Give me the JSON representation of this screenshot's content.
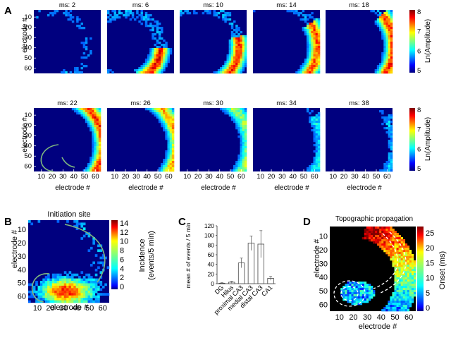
{
  "panels": {
    "A": {
      "letter": "A",
      "frames": [
        {
          "title": "ms: 2",
          "intensity": 0.35,
          "ang": [
            1.05,
            1.35
          ],
          "rad": 0.55
        },
        {
          "title": "ms: 6",
          "intensity": 0.85,
          "ang": [
            0.05,
            1.2
          ],
          "rad": 0.55
        },
        {
          "title": "ms: 10",
          "intensity": 0.8,
          "ang": [
            -0.25,
            1.25
          ],
          "rad": 0.64
        },
        {
          "title": "ms: 14",
          "intensity": 0.75,
          "ang": [
            -0.55,
            1.15
          ],
          "rad": 0.72
        },
        {
          "title": "ms: 18",
          "intensity": 0.8,
          "ang": [
            -0.7,
            1.1
          ],
          "rad": 0.78
        },
        {
          "title": "ms: 22",
          "intensity": 0.8,
          "ang": [
            -1.1,
            1.1
          ],
          "rad": 0.8
        },
        {
          "title": "ms: 26",
          "intensity": 0.65,
          "ang": [
            -1.1,
            1.1
          ],
          "rad": 0.8
        },
        {
          "title": "ms: 30",
          "intensity": 0.45,
          "ang": [
            -1.1,
            1.1
          ],
          "rad": 0.8
        },
        {
          "title": "ms: 34",
          "intensity": 0.25,
          "ang": [
            -0.6,
            1.1
          ],
          "rad": 0.8
        },
        {
          "title": "ms: 38",
          "intensity": 0.18,
          "ang": [
            -0.6,
            1.1
          ],
          "rad": 0.8
        }
      ],
      "ylabel": "electrode #",
      "xlabel": "electrode #",
      "yticks": [
        "10",
        "20",
        "30",
        "40",
        "50",
        "60"
      ],
      "xticks": [
        "10",
        "20",
        "30",
        "40",
        "50",
        "60"
      ],
      "colorbar": {
        "label": "Ln(Amplitude)",
        "ticks": [
          "8",
          "7",
          "6",
          "5"
        ]
      }
    },
    "B": {
      "letter": "B",
      "title": "Initiation site",
      "ylabel": "electrode #",
      "xlabel": "electrode #",
      "yticks": [
        "10",
        "20",
        "30",
        "40",
        "50",
        "60"
      ],
      "xticks": [
        "10",
        "20",
        "30",
        "40",
        "50",
        "60"
      ],
      "colorbar": {
        "label_line1": "Incidence",
        "label_line2": "(events/5 min)",
        "ticks": [
          "14",
          "12",
          "10",
          "8",
          "6",
          "4",
          "2",
          "0"
        ]
      }
    },
    "C": {
      "letter": "C",
      "chart_data": {
        "type": "bar",
        "categories": [
          "DG",
          "Hilus",
          "proximal CA3",
          "medial CA3",
          "distal CA3",
          "CA1"
        ],
        "values": [
          1,
          3,
          43,
          84,
          82,
          11
        ],
        "errors": [
          1,
          2,
          10,
          15,
          28,
          4
        ],
        "ylabel": "mean # of events / 5 min",
        "ylim": [
          0,
          120
        ],
        "yticks": [
          0,
          20,
          40,
          60,
          80,
          100,
          120
        ]
      }
    },
    "D": {
      "letter": "D",
      "title": "Topographic propagation",
      "ylabel": "electrode #",
      "xlabel": "electrode #",
      "yticks": [
        "10",
        "20",
        "30",
        "40",
        "50",
        "60"
      ],
      "xticks": [
        "10",
        "20",
        "30",
        "40",
        "50",
        "60"
      ],
      "colorbar": {
        "label": "Onset (ms)",
        "ticks": [
          "25",
          "20",
          "15",
          "10",
          "5",
          "0"
        ]
      }
    }
  },
  "colors": {
    "jet_dark": "#00007f",
    "guide_line": "#7fb87f",
    "dashed": "#ffffff",
    "bar_fill": "#ffffff",
    "bar_edge": "#444444"
  }
}
